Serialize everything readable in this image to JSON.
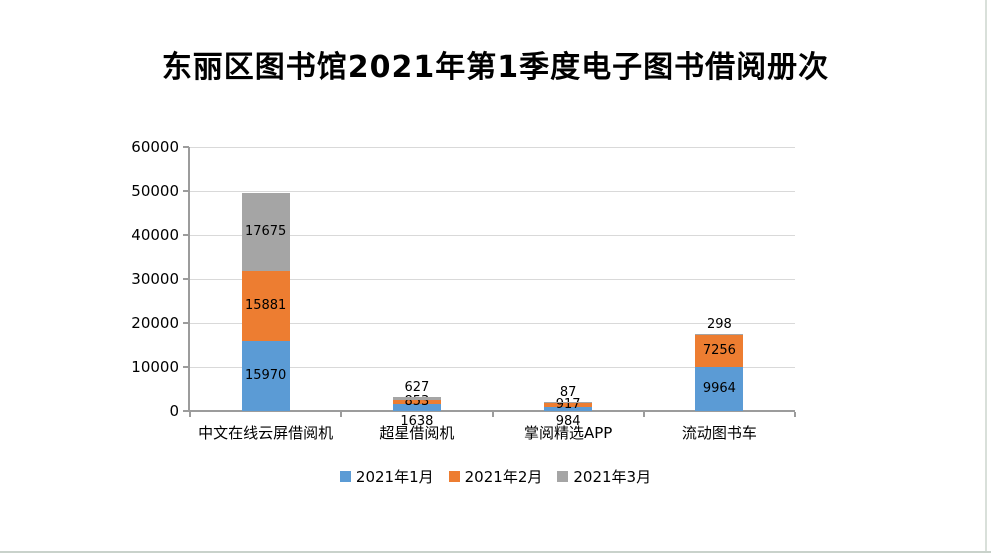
{
  "title": "东丽区图书馆2021年第1季度电子图书借阅册次",
  "chart_data": {
    "type": "bar",
    "stacked": true,
    "title": "东丽区图书馆2021年第1季度电子图书借阅册次",
    "categories": [
      "中文在线云屏借阅机",
      "超星借阅机",
      "掌阅精选APP",
      "流动图书车"
    ],
    "series": [
      {
        "name": "2021年1月",
        "color": "#5B9BD5",
        "values": [
          15970,
          1638,
          984,
          9964
        ]
      },
      {
        "name": "2021年2月",
        "color": "#ED7D31",
        "values": [
          15881,
          853,
          917,
          7256
        ]
      },
      {
        "name": "2021年3月",
        "color": "#A5A5A5",
        "values": [
          17675,
          627,
          87,
          298
        ]
      }
    ],
    "ylim": [
      0,
      60000
    ],
    "ytick_step": 10000,
    "yticks": [
      "0",
      "10000",
      "20000",
      "30000",
      "40000",
      "50000",
      "60000"
    ],
    "grid": true,
    "data_labels": true,
    "legend_position": "bottom"
  },
  "colors": {
    "grid": "#d9d9d9",
    "axis": "#9c9c9c",
    "text": "#000000",
    "edge": "#cdd6d0"
  }
}
